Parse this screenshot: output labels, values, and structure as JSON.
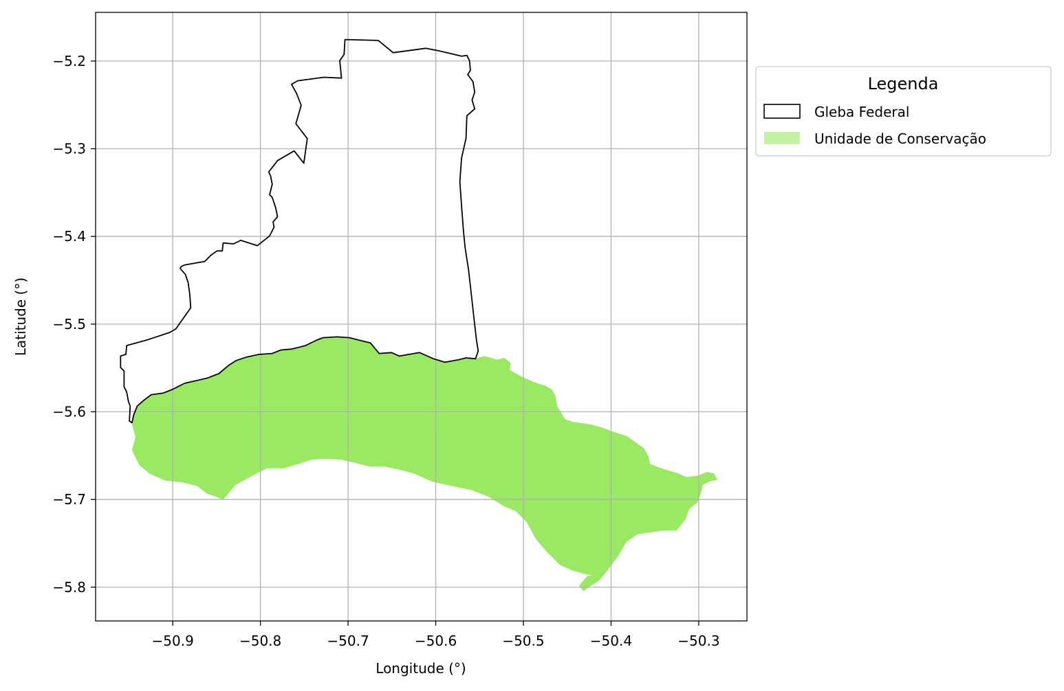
{
  "map": {
    "xlabel": "Longitude (°)",
    "ylabel": "Latitude (°)",
    "xlim": [
      -50.988,
      -50.245
    ],
    "ylim": [
      -5.8385,
      -5.1445
    ],
    "x_ticks": [
      {
        "value": -50.9,
        "label": "−50.9"
      },
      {
        "value": -50.8,
        "label": "−50.8"
      },
      {
        "value": -50.7,
        "label": "−50.7"
      },
      {
        "value": -50.6,
        "label": "−50.6"
      },
      {
        "value": -50.5,
        "label": "−50.5"
      },
      {
        "value": -50.4,
        "label": "−50.4"
      },
      {
        "value": -50.3,
        "label": "−50.3"
      }
    ],
    "y_ticks": [
      {
        "value": -5.2,
        "label": "−5.2"
      },
      {
        "value": -5.3,
        "label": "−5.3"
      },
      {
        "value": -5.4,
        "label": "−5.4"
      },
      {
        "value": -5.5,
        "label": "−5.5"
      },
      {
        "value": -5.6,
        "label": "−5.6"
      },
      {
        "value": -5.7,
        "label": "−5.7"
      },
      {
        "value": -5.8,
        "label": "−5.8"
      }
    ],
    "grid": true,
    "legend": {
      "title": "Legenda",
      "placement": "outside upper right",
      "items": [
        {
          "label": "Gleba Federal",
          "kind": "outline",
          "edge_color": "#000000",
          "fill_color": "none"
        },
        {
          "label": "Unidade de Conservação",
          "kind": "fill",
          "fill_color": "#9ae963"
        }
      ]
    },
    "layers": {
      "gleba_federal": {
        "edge_color": "#000000",
        "fill_color": "none",
        "coordinates": [
          [
            -50.9495,
            -5.6105
          ],
          [
            -50.9485,
            -5.5935
          ],
          [
            -50.9505,
            -5.5885
          ],
          [
            -50.9525,
            -5.5775
          ],
          [
            -50.9555,
            -5.5715
          ],
          [
            -50.9555,
            -5.5535
          ],
          [
            -50.9595,
            -5.5495
          ],
          [
            -50.9595,
            -5.5365
          ],
          [
            -50.9535,
            -5.5345
          ],
          [
            -50.9525,
            -5.5245
          ],
          [
            -50.9275,
            -5.5175
          ],
          [
            -50.9035,
            -5.5095
          ],
          [
            -50.8965,
            -5.5055
          ],
          [
            -50.8795,
            -5.4815
          ],
          [
            -50.8805,
            -5.4665
          ],
          [
            -50.8825,
            -5.4525
          ],
          [
            -50.8855,
            -5.4435
          ],
          [
            -50.8915,
            -5.4365
          ],
          [
            -50.8905,
            -5.4345
          ],
          [
            -50.8865,
            -5.4325
          ],
          [
            -50.8635,
            -5.4285
          ],
          [
            -50.8565,
            -5.4215
          ],
          [
            -50.8495,
            -5.4165
          ],
          [
            -50.8435,
            -5.4165
          ],
          [
            -50.8425,
            -5.4075
          ],
          [
            -50.8305,
            -5.4085
          ],
          [
            -50.8225,
            -5.4045
          ],
          [
            -50.8035,
            -5.4105
          ],
          [
            -50.7895,
            -5.3995
          ],
          [
            -50.7845,
            -5.3895
          ],
          [
            -50.7855,
            -5.3835
          ],
          [
            -50.7805,
            -5.3775
          ],
          [
            -50.7825,
            -5.3675
          ],
          [
            -50.7865,
            -5.3555
          ],
          [
            -50.7895,
            -5.3525
          ],
          [
            -50.7865,
            -5.3405
          ],
          [
            -50.7885,
            -5.3305
          ],
          [
            -50.7905,
            -5.3265
          ],
          [
            -50.7805,
            -5.3135
          ],
          [
            -50.7615,
            -5.3025
          ],
          [
            -50.7505,
            -5.3165
          ],
          [
            -50.7465,
            -5.2885
          ],
          [
            -50.7595,
            -5.2715
          ],
          [
            -50.7535,
            -5.2505
          ],
          [
            -50.7585,
            -5.2375
          ],
          [
            -50.7645,
            -5.2265
          ],
          [
            -50.7575,
            -5.2225
          ],
          [
            -50.7275,
            -5.2185
          ],
          [
            -50.7075,
            -5.2195
          ],
          [
            -50.7095,
            -5.1995
          ],
          [
            -50.7045,
            -5.1925
          ],
          [
            -50.7035,
            -5.1755
          ],
          [
            -50.6655,
            -5.1765
          ],
          [
            -50.6485,
            -5.1905
          ],
          [
            -50.6115,
            -5.1855
          ],
          [
            -50.5955,
            -5.1885
          ],
          [
            -50.5705,
            -5.1945
          ],
          [
            -50.5645,
            -5.1935
          ],
          [
            -50.5615,
            -5.1995
          ],
          [
            -50.5605,
            -5.2105
          ],
          [
            -50.5635,
            -5.2155
          ],
          [
            -50.5575,
            -5.2235
          ],
          [
            -50.5555,
            -5.2355
          ],
          [
            -50.5585,
            -5.2445
          ],
          [
            -50.5555,
            -5.2545
          ],
          [
            -50.5645,
            -5.2625
          ],
          [
            -50.5655,
            -5.2885
          ],
          [
            -50.5705,
            -5.3105
          ],
          [
            -50.5725,
            -5.3375
          ],
          [
            -50.5705,
            -5.3655
          ],
          [
            -50.5685,
            -5.3925
          ],
          [
            -50.5665,
            -5.4125
          ],
          [
            -50.5625,
            -5.4385
          ],
          [
            -50.5595,
            -5.4655
          ],
          [
            -50.5565,
            -5.4925
          ],
          [
            -50.5535,
            -5.5185
          ],
          [
            -50.5515,
            -5.5305
          ],
          [
            -50.5545,
            -5.5395
          ],
          [
            -50.5655,
            -5.5385
          ],
          [
            -50.5735,
            -5.5405
          ],
          [
            -50.5895,
            -5.5435
          ],
          [
            -50.6025,
            -5.5395
          ],
          [
            -50.6185,
            -5.5325
          ],
          [
            -50.6305,
            -5.5345
          ],
          [
            -50.6415,
            -5.5365
          ],
          [
            -50.6505,
            -5.5325
          ],
          [
            -50.6645,
            -5.5335
          ],
          [
            -50.6745,
            -5.5215
          ],
          [
            -50.6865,
            -5.5185
          ],
          [
            -50.6985,
            -5.5155
          ],
          [
            -50.7125,
            -5.5145
          ],
          [
            -50.7285,
            -5.5155
          ],
          [
            -50.7365,
            -5.5185
          ],
          [
            -50.7485,
            -5.5245
          ],
          [
            -50.7645,
            -5.5285
          ],
          [
            -50.7765,
            -5.5295
          ],
          [
            -50.7865,
            -5.5335
          ],
          [
            -50.8015,
            -5.5345
          ],
          [
            -50.8155,
            -5.5375
          ],
          [
            -50.8275,
            -5.5415
          ],
          [
            -50.8355,
            -5.5465
          ],
          [
            -50.8475,
            -5.5565
          ],
          [
            -50.8605,
            -5.5615
          ],
          [
            -50.8735,
            -5.5645
          ],
          [
            -50.8865,
            -5.5675
          ],
          [
            -50.9005,
            -5.5745
          ],
          [
            -50.9105,
            -5.5785
          ],
          [
            -50.9245,
            -5.5805
          ],
          [
            -50.9325,
            -5.5865
          ],
          [
            -50.9405,
            -5.5935
          ],
          [
            -50.9445,
            -5.6035
          ],
          [
            -50.9465,
            -5.6125
          ],
          [
            -50.9495,
            -5.6105
          ]
        ]
      },
      "unidade_de_conservacao": {
        "fill_color": "#9ae963",
        "coordinates": [
          [
            -50.9465,
            -5.6145
          ],
          [
            -50.9445,
            -5.6035
          ],
          [
            -50.9405,
            -5.5935
          ],
          [
            -50.9325,
            -5.5865
          ],
          [
            -50.9245,
            -5.5805
          ],
          [
            -50.9105,
            -5.5785
          ],
          [
            -50.9005,
            -5.5745
          ],
          [
            -50.8865,
            -5.5675
          ],
          [
            -50.8735,
            -5.5645
          ],
          [
            -50.8605,
            -5.5615
          ],
          [
            -50.8475,
            -5.5565
          ],
          [
            -50.8355,
            -5.5465
          ],
          [
            -50.8275,
            -5.5415
          ],
          [
            -50.8155,
            -5.5375
          ],
          [
            -50.8015,
            -5.5345
          ],
          [
            -50.7865,
            -5.5335
          ],
          [
            -50.7765,
            -5.5295
          ],
          [
            -50.7645,
            -5.5285
          ],
          [
            -50.7485,
            -5.5245
          ],
          [
            -50.7365,
            -5.5185
          ],
          [
            -50.7285,
            -5.5155
          ],
          [
            -50.7125,
            -5.5145
          ],
          [
            -50.6985,
            -5.5155
          ],
          [
            -50.6865,
            -5.5185
          ],
          [
            -50.6745,
            -5.5215
          ],
          [
            -50.6645,
            -5.5335
          ],
          [
            -50.6505,
            -5.5325
          ],
          [
            -50.6415,
            -5.5365
          ],
          [
            -50.6305,
            -5.5345
          ],
          [
            -50.6185,
            -5.5325
          ],
          [
            -50.6025,
            -5.5395
          ],
          [
            -50.5895,
            -5.5435
          ],
          [
            -50.5735,
            -5.5405
          ],
          [
            -50.5655,
            -5.5385
          ],
          [
            -50.5545,
            -5.5395
          ],
          [
            -50.5445,
            -5.5365
          ],
          [
            -50.5295,
            -5.5405
          ],
          [
            -50.5215,
            -5.5385
          ],
          [
            -50.5145,
            -5.5445
          ],
          [
            -50.5155,
            -5.5525
          ],
          [
            -50.5005,
            -5.5605
          ],
          [
            -50.4895,
            -5.5655
          ],
          [
            -50.4745,
            -5.5705
          ],
          [
            -50.4675,
            -5.5745
          ],
          [
            -50.4635,
            -5.5815
          ],
          [
            -50.4615,
            -5.5935
          ],
          [
            -50.4525,
            -5.6085
          ],
          [
            -50.4435,
            -5.6115
          ],
          [
            -50.4225,
            -5.6145
          ],
          [
            -50.4085,
            -5.6185
          ],
          [
            -50.3985,
            -5.6225
          ],
          [
            -50.3825,
            -5.6275
          ],
          [
            -50.3725,
            -5.6345
          ],
          [
            -50.3625,
            -5.6415
          ],
          [
            -50.3575,
            -5.6505
          ],
          [
            -50.3555,
            -5.6595
          ],
          [
            -50.3425,
            -5.6645
          ],
          [
            -50.3255,
            -5.6695
          ],
          [
            -50.3135,
            -5.6745
          ],
          [
            -50.3005,
            -5.6725
          ],
          [
            -50.2905,
            -5.6685
          ],
          [
            -50.2825,
            -5.6705
          ],
          [
            -50.2785,
            -5.6775
          ],
          [
            -50.2875,
            -5.6795
          ],
          [
            -50.2955,
            -5.6835
          ],
          [
            -50.2975,
            -5.6935
          ],
          [
            -50.3015,
            -5.7035
          ],
          [
            -50.3105,
            -5.7105
          ],
          [
            -50.3155,
            -5.7235
          ],
          [
            -50.3255,
            -5.7355
          ],
          [
            -50.3405,
            -5.7355
          ],
          [
            -50.3555,
            -5.7375
          ],
          [
            -50.3695,
            -5.7395
          ],
          [
            -50.3825,
            -5.7485
          ],
          [
            -50.3925,
            -5.7655
          ],
          [
            -50.4045,
            -5.7815
          ],
          [
            -50.4135,
            -5.7925
          ],
          [
            -50.4245,
            -5.7995
          ],
          [
            -50.4315,
            -5.8045
          ],
          [
            -50.4365,
            -5.7985
          ],
          [
            -50.4275,
            -5.7875
          ],
          [
            -50.4215,
            -5.7865
          ],
          [
            -50.4285,
            -5.7855
          ],
          [
            -50.4455,
            -5.7805
          ],
          [
            -50.4585,
            -5.7745
          ],
          [
            -50.4735,
            -5.7595
          ],
          [
            -50.4855,
            -5.7455
          ],
          [
            -50.4965,
            -5.7255
          ],
          [
            -50.5085,
            -5.7135
          ],
          [
            -50.5225,
            -5.7075
          ],
          [
            -50.5405,
            -5.6965
          ],
          [
            -50.5585,
            -5.6895
          ],
          [
            -50.5825,
            -5.6845
          ],
          [
            -50.6045,
            -5.6795
          ],
          [
            -50.6245,
            -5.6705
          ],
          [
            -50.6435,
            -5.6655
          ],
          [
            -50.6585,
            -5.6625
          ],
          [
            -50.6755,
            -5.6625
          ],
          [
            -50.6905,
            -5.6585
          ],
          [
            -50.7085,
            -5.6545
          ],
          [
            -50.7255,
            -5.6535
          ],
          [
            -50.7415,
            -5.6545
          ],
          [
            -50.7565,
            -5.6595
          ],
          [
            -50.7735,
            -5.6645
          ],
          [
            -50.7925,
            -5.6645
          ],
          [
            -50.8085,
            -5.6725
          ],
          [
            -50.8285,
            -5.6835
          ],
          [
            -50.8425,
            -5.7005
          ],
          [
            -50.8515,
            -5.6965
          ],
          [
            -50.8605,
            -5.6935
          ],
          [
            -50.8725,
            -5.6845
          ],
          [
            -50.8895,
            -5.6805
          ],
          [
            -50.9085,
            -5.6785
          ],
          [
            -50.9265,
            -5.6705
          ],
          [
            -50.9375,
            -5.6615
          ],
          [
            -50.9425,
            -5.6525
          ],
          [
            -50.9465,
            -5.6435
          ],
          [
            -50.9425,
            -5.6285
          ],
          [
            -50.9465,
            -5.6145
          ]
        ]
      }
    }
  }
}
